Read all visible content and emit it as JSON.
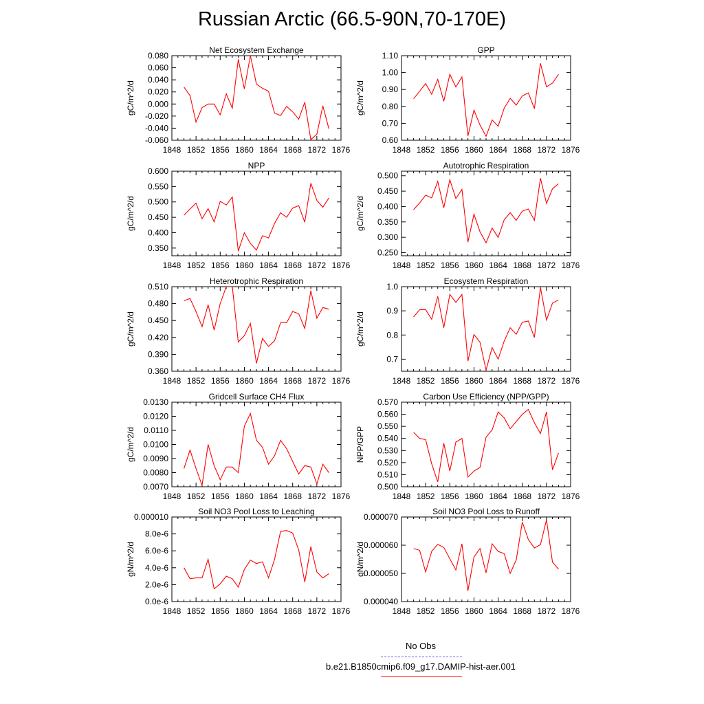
{
  "page": {
    "title": "Russian Arctic (66.5-90N,70-170E)"
  },
  "colors": {
    "model": "#ff0000",
    "obs": "#5555ee",
    "axis": "#000000"
  },
  "legend": {
    "obs_label": "No Obs",
    "model_label": "b.e21.B1850cmip6.f09_g17.DAMIP-hist-aer.001"
  },
  "xaxis": {
    "ticks": [
      "1848",
      "1852",
      "1856",
      "1860",
      "1864",
      "1868",
      "1872",
      "1876"
    ],
    "range": [
      1848,
      1876
    ]
  },
  "chart_data": [
    {
      "type": "line",
      "title": "Net Ecosystem Exchange",
      "ylabel": "gC/m^2/d",
      "xlabel": "",
      "ylim": [
        -0.06,
        0.08
      ],
      "yticks": [
        "-0.060",
        "-0.040",
        "-0.020",
        "0.000",
        "0.020",
        "0.040",
        "0.060",
        "0.080"
      ],
      "series": [
        {
          "x": [
            1850,
            1851,
            1852,
            1853,
            1854,
            1855,
            1856,
            1857,
            1858,
            1859,
            1860,
            1861,
            1862,
            1863,
            1864,
            1865,
            1866,
            1867,
            1868,
            1869,
            1870,
            1871,
            1872,
            1873,
            1874
          ],
          "values": [
            0.028,
            0.014,
            -0.03,
            -0.006,
            0.0,
            0.0,
            -0.018,
            0.017,
            -0.007,
            0.074,
            0.025,
            0.08,
            0.033,
            0.026,
            0.021,
            -0.015,
            -0.019,
            -0.004,
            -0.013,
            -0.025,
            0.003,
            -0.059,
            -0.05,
            -0.003,
            -0.041
          ]
        }
      ]
    },
    {
      "type": "line",
      "title": "GPP",
      "ylabel": "gC/m^2/d",
      "xlabel": "",
      "ylim": [
        0.6,
        1.1
      ],
      "yticks": [
        "0.60",
        "0.70",
        "0.80",
        "0.90",
        "1.00",
        "1.10"
      ],
      "series": [
        {
          "x": [
            1850,
            1851,
            1852,
            1853,
            1854,
            1855,
            1856,
            1857,
            1858,
            1859,
            1860,
            1861,
            1862,
            1863,
            1864,
            1865,
            1866,
            1867,
            1868,
            1869,
            1870,
            1871,
            1872,
            1873,
            1874
          ],
          "values": [
            0.845,
            0.89,
            0.935,
            0.872,
            0.96,
            0.83,
            0.99,
            0.915,
            0.975,
            0.625,
            0.778,
            0.69,
            0.623,
            0.72,
            0.683,
            0.79,
            0.848,
            0.808,
            0.862,
            0.88,
            0.787,
            1.055,
            0.916,
            0.938,
            0.99
          ]
        }
      ]
    },
    {
      "type": "line",
      "title": "NPP",
      "ylabel": "gC/m^2/d",
      "xlabel": "",
      "ylim": [
        0.325,
        0.6
      ],
      "yticks": [
        "0.350",
        "0.400",
        "0.450",
        "0.500",
        "0.550",
        "0.600"
      ],
      "series": [
        {
          "x": [
            1850,
            1851,
            1852,
            1853,
            1854,
            1855,
            1856,
            1857,
            1858,
            1859,
            1860,
            1861,
            1862,
            1863,
            1864,
            1865,
            1866,
            1867,
            1868,
            1869,
            1870,
            1871,
            1872,
            1873,
            1874
          ],
          "values": [
            0.457,
            0.477,
            0.496,
            0.445,
            0.478,
            0.435,
            0.502,
            0.49,
            0.516,
            0.34,
            0.4,
            0.365,
            0.343,
            0.39,
            0.383,
            0.43,
            0.465,
            0.45,
            0.48,
            0.488,
            0.434,
            0.561,
            0.505,
            0.483,
            0.513
          ]
        }
      ]
    },
    {
      "type": "line",
      "title": "Autotrophic Respiration",
      "ylabel": "gC/m^2/d",
      "xlabel": "",
      "ylim": [
        0.24,
        0.515
      ],
      "yticks": [
        "0.250",
        "0.300",
        "0.350",
        "0.400",
        "0.450",
        "0.500"
      ],
      "series": [
        {
          "x": [
            1850,
            1851,
            1852,
            1853,
            1854,
            1855,
            1856,
            1857,
            1858,
            1859,
            1860,
            1861,
            1862,
            1863,
            1864,
            1865,
            1866,
            1867,
            1868,
            1869,
            1870,
            1871,
            1872,
            1873,
            1874
          ],
          "values": [
            0.39,
            0.412,
            0.437,
            0.428,
            0.482,
            0.396,
            0.487,
            0.426,
            0.456,
            0.284,
            0.375,
            0.318,
            0.282,
            0.33,
            0.3,
            0.357,
            0.38,
            0.355,
            0.385,
            0.392,
            0.355,
            0.492,
            0.41,
            0.458,
            0.474
          ]
        }
      ]
    },
    {
      "type": "line",
      "title": "Heterotrophic Respiration",
      "ylabel": "gC/m^2/d",
      "xlabel": "",
      "ylim": [
        0.36,
        0.51
      ],
      "yticks": [
        "0.360",
        "0.390",
        "0.420",
        "0.450",
        "0.480",
        "0.510"
      ],
      "series": [
        {
          "x": [
            1850,
            1851,
            1852,
            1853,
            1854,
            1855,
            1856,
            1857,
            1858,
            1859,
            1860,
            1861,
            1862,
            1863,
            1864,
            1865,
            1866,
            1867,
            1868,
            1869,
            1870,
            1871,
            1872,
            1873,
            1874
          ],
          "values": [
            0.485,
            0.489,
            0.466,
            0.439,
            0.478,
            0.433,
            0.48,
            0.51,
            0.51,
            0.412,
            0.423,
            0.445,
            0.374,
            0.418,
            0.404,
            0.414,
            0.446,
            0.446,
            0.466,
            0.462,
            0.436,
            0.503,
            0.454,
            0.473,
            0.47
          ]
        }
      ]
    },
    {
      "type": "line",
      "title": "Ecosystem Respiration",
      "ylabel": "gC/m^2/d",
      "xlabel": "",
      "ylim": [
        0.65,
        1.0
      ],
      "yticks": [
        "0.7",
        "0.8",
        "0.9",
        "1.0"
      ],
      "series": [
        {
          "x": [
            1850,
            1851,
            1852,
            1853,
            1854,
            1855,
            1856,
            1857,
            1858,
            1859,
            1860,
            1861,
            1862,
            1863,
            1864,
            1865,
            1866,
            1867,
            1868,
            1869,
            1870,
            1871,
            1872,
            1873,
            1874
          ],
          "values": [
            0.875,
            0.905,
            0.905,
            0.865,
            0.96,
            0.83,
            0.968,
            0.935,
            0.968,
            0.692,
            0.802,
            0.77,
            0.655,
            0.748,
            0.7,
            0.775,
            0.83,
            0.803,
            0.853,
            0.858,
            0.79,
            0.997,
            0.862,
            0.932,
            0.945
          ]
        }
      ]
    },
    {
      "type": "line",
      "title": "Gridcell Surface CH4 Flux",
      "ylabel": "gC/m^2/d",
      "xlabel": "",
      "ylim": [
        0.007,
        0.013
      ],
      "yticks": [
        "0.0070",
        "0.0080",
        "0.0090",
        "0.0100",
        "0.0110",
        "0.0120",
        "0.0130"
      ],
      "series": [
        {
          "x": [
            1850,
            1851,
            1852,
            1853,
            1854,
            1855,
            1856,
            1857,
            1858,
            1859,
            1860,
            1861,
            1862,
            1863,
            1864,
            1865,
            1866,
            1867,
            1868,
            1869,
            1870,
            1871,
            1872,
            1873,
            1874
          ],
          "values": [
            0.0083,
            0.0096,
            0.0083,
            0.0071,
            0.01,
            0.0085,
            0.0075,
            0.0084,
            0.0084,
            0.008,
            0.0113,
            0.0122,
            0.0103,
            0.0098,
            0.0086,
            0.0092,
            0.0103,
            0.0097,
            0.0088,
            0.0079,
            0.0085,
            0.0084,
            0.0072,
            0.0086,
            0.008
          ]
        }
      ]
    },
    {
      "type": "line",
      "title": "Carbon Use Efficiency (NPP/GPP)",
      "ylabel": "NPP/GPP",
      "xlabel": "",
      "ylim": [
        0.5,
        0.57
      ],
      "yticks": [
        "0.500",
        "0.510",
        "0.520",
        "0.530",
        "0.540",
        "0.550",
        "0.560",
        "0.570"
      ],
      "series": [
        {
          "x": [
            1850,
            1851,
            1852,
            1853,
            1854,
            1855,
            1856,
            1857,
            1858,
            1859,
            1860,
            1861,
            1862,
            1863,
            1864,
            1865,
            1866,
            1867,
            1868,
            1869,
            1870,
            1871,
            1872,
            1873,
            1874
          ],
          "values": [
            0.545,
            0.54,
            0.539,
            0.519,
            0.504,
            0.536,
            0.513,
            0.537,
            0.54,
            0.508,
            0.513,
            0.516,
            0.541,
            0.547,
            0.562,
            0.557,
            0.548,
            0.554,
            0.56,
            0.564,
            0.553,
            0.544,
            0.562,
            0.514,
            0.528
          ]
        }
      ]
    },
    {
      "type": "line",
      "title": "Soil NO3 Pool Loss to Leaching",
      "ylabel": "gN/m^2/d",
      "xlabel": "",
      "ylim": [
        0.0,
        1e-05
      ],
      "yticks": [
        "0.0e-6",
        "2.0e-6",
        "4.0e-6",
        "6.0e-6",
        "8.0e-6",
        "0.000010"
      ],
      "series": [
        {
          "x": [
            1850,
            1851,
            1852,
            1853,
            1854,
            1855,
            1856,
            1857,
            1858,
            1859,
            1860,
            1861,
            1862,
            1863,
            1864,
            1865,
            1866,
            1867,
            1868,
            1869,
            1870,
            1871,
            1872,
            1873,
            1874
          ],
          "values": [
            4e-06,
            2.7e-06,
            2.8e-06,
            2.8e-06,
            5e-06,
            1.5e-06,
            2.1e-06,
            3e-06,
            2.7e-06,
            1.7e-06,
            3.8e-06,
            4.9e-06,
            4.5e-06,
            4.7e-06,
            2.8e-06,
            5e-06,
            8.3e-06,
            8.4e-06,
            8.1e-06,
            6.1e-06,
            2.3e-06,
            6.5e-06,
            3.5e-06,
            2.8e-06,
            3.3e-06
          ]
        }
      ]
    },
    {
      "type": "line",
      "title": "Soil NO3 Pool Loss to Runoff",
      "ylabel": "gN/m^2/d",
      "xlabel": "",
      "ylim": [
        4e-05,
        7e-05
      ],
      "yticks": [
        "0.000040",
        "0.000050",
        "0.000060",
        "0.000070"
      ],
      "series": [
        {
          "x": [
            1850,
            1851,
            1852,
            1853,
            1854,
            1855,
            1856,
            1857,
            1858,
            1859,
            1860,
            1861,
            1862,
            1863,
            1864,
            1865,
            1866,
            1867,
            1868,
            1869,
            1870,
            1871,
            1872,
            1873,
            1874
          ],
          "values": [
            5.88e-05,
            5.82e-05,
            5.05e-05,
            5.78e-05,
            6.03e-05,
            5.92e-05,
            5.52e-05,
            5.12e-05,
            6.05e-05,
            4.38e-05,
            5.58e-05,
            5.88e-05,
            5.02e-05,
            6.05e-05,
            5.78e-05,
            5.7e-05,
            5e-05,
            5.48e-05,
            6.82e-05,
            6.2e-05,
            5.9e-05,
            6.02e-05,
            6.9e-05,
            5.4e-05,
            5.15e-05
          ]
        }
      ]
    }
  ]
}
